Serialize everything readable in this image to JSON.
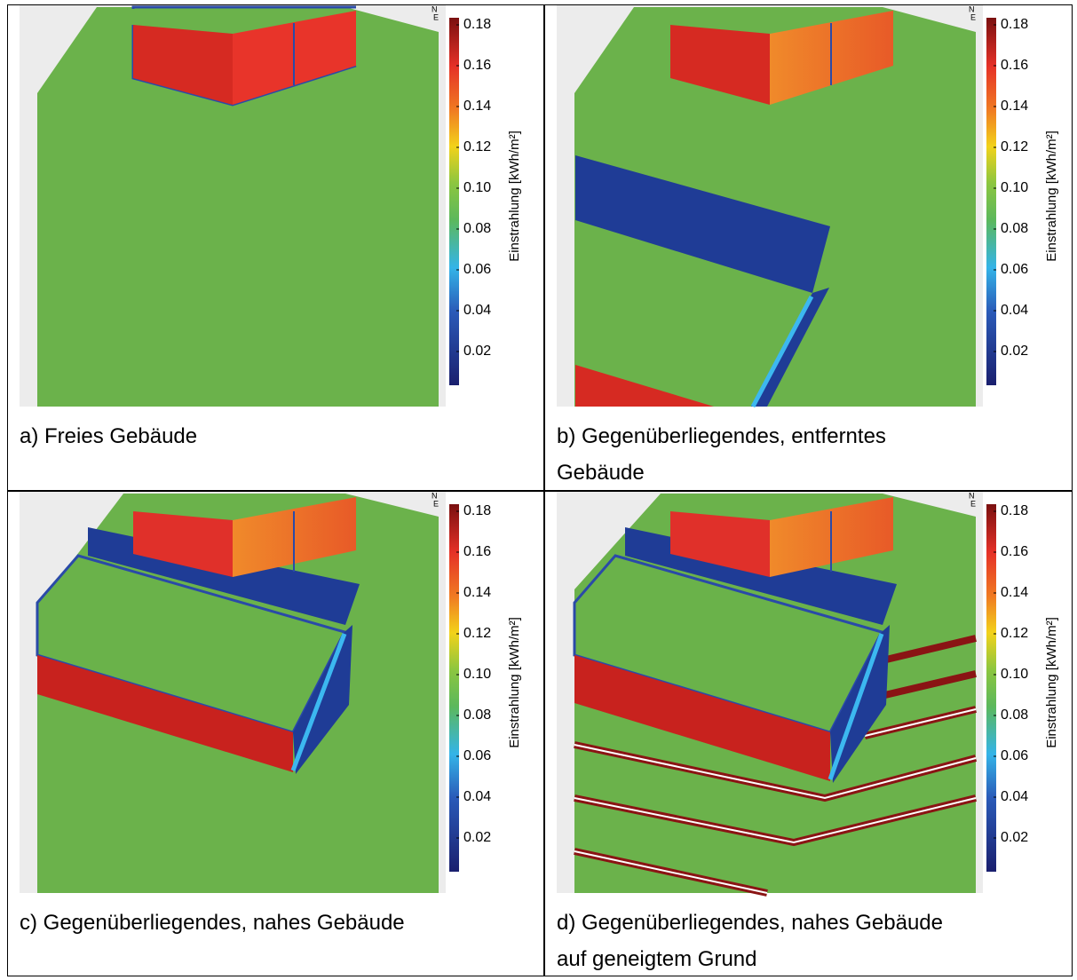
{
  "colorbar": {
    "label": "Einstrahlung [kWh/m²]",
    "ticks": [
      "0.18",
      "0.16",
      "0.14",
      "0.12",
      "0.10",
      "0.08",
      "0.06",
      "0.04",
      "0.02"
    ]
  },
  "compass": {
    "north": "N",
    "east": "E"
  },
  "panels": [
    {
      "caption": "a) Freies Gebäude"
    },
    {
      "caption": "b) Gegenüberliegendes, entferntes Gebäude"
    },
    {
      "caption": "c) Gegenüberliegendes, nahes Gebäude"
    },
    {
      "caption": "d) Gegenüberliegendes, nahes Gebäude auf geneigtem Grund"
    }
  ]
}
